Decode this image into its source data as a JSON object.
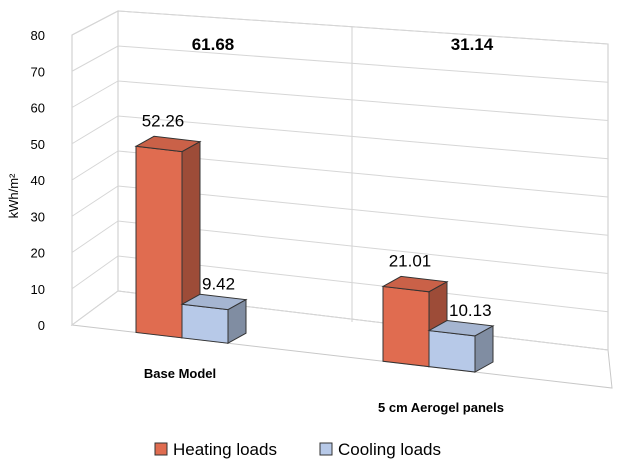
{
  "chart_data": {
    "type": "bar",
    "categories": [
      "Base Model",
      "5 cm Aerogel panels"
    ],
    "series": [
      {
        "name": "Heating loads",
        "values": [
          52.26,
          21.01
        ],
        "color": "#e06c50"
      },
      {
        "name": "Cooling loads",
        "values": [
          9.42,
          10.13
        ],
        "color": "#b7c9e8"
      }
    ],
    "data_labels": [
      [
        "52.26",
        "21.01"
      ],
      [
        "9.42",
        "10.13"
      ]
    ],
    "totals": [
      "61.68",
      "31.14"
    ],
    "title": "",
    "xlabel": "",
    "ylabel": "kWh/m²",
    "ylim": [
      0,
      80
    ],
    "yticks": [
      0,
      10,
      20,
      30,
      40,
      50,
      60,
      70,
      80
    ],
    "grid": true,
    "legend_position": "bottom",
    "three_d": true
  }
}
